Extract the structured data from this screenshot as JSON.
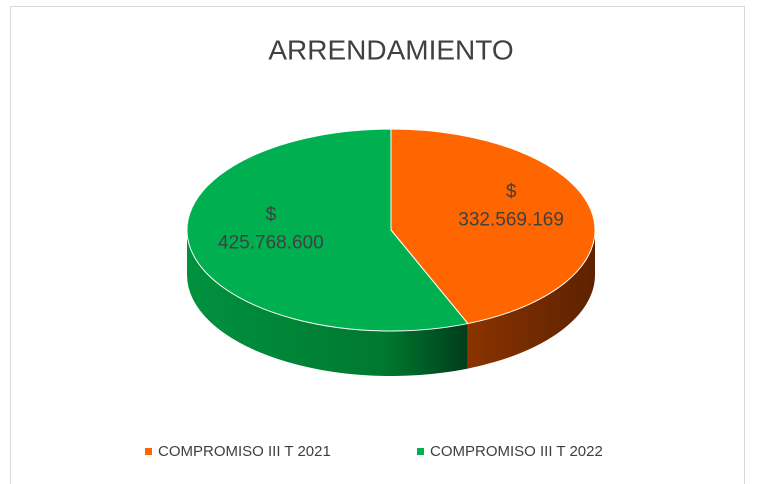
{
  "chart_data": {
    "type": "pie",
    "title": "ARRENDAMIENTO",
    "categories": [
      "COMPROMISO III T 2021",
      "COMPROMISO III T 2022"
    ],
    "values": [
      332569169,
      425768600
    ],
    "value_labels": [
      "$\n332.569.169",
      "$\n425.768.600"
    ],
    "colors": [
      "#ff6600",
      "#00b050"
    ],
    "legend": "bottom"
  }
}
